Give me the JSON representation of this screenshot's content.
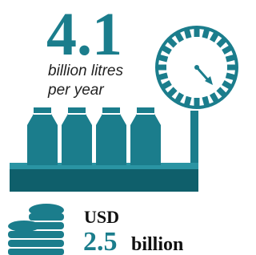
{
  "volume": {
    "value": "4.1",
    "unit_line1": "billion litres",
    "unit_line2": "per year"
  },
  "revenue": {
    "currency": "USD",
    "amount": "2.5",
    "unit": "billion"
  }
}
